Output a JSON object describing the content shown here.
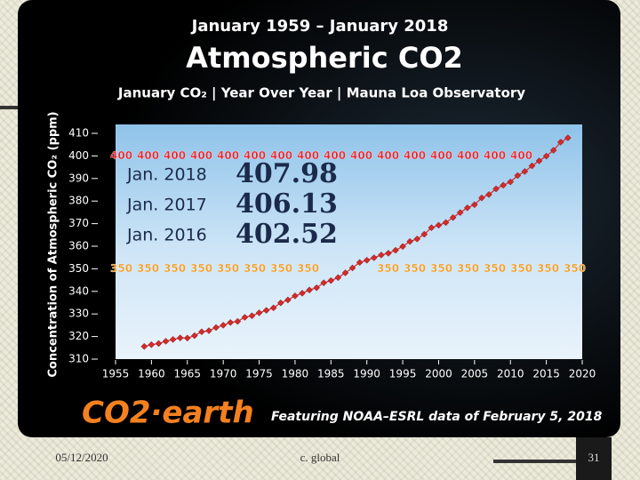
{
  "chart_data": {
    "type": "line",
    "title": "January 1959 – January 2018",
    "headline": "Atmospheric CO2",
    "subtitle": "January CO₂ | Year Over Year | Mauna Loa Observatory",
    "ylabel": "Concentration of Atmospheric CO₂ (ppm)",
    "brand": "CO2·earth",
    "credit": "Featuring NOAA–ESRL data of February 5, 2018",
    "x": [
      1959,
      1960,
      1961,
      1962,
      1963,
      1964,
      1965,
      1966,
      1967,
      1968,
      1969,
      1970,
      1971,
      1972,
      1973,
      1974,
      1975,
      1976,
      1977,
      1978,
      1979,
      1980,
      1981,
      1982,
      1983,
      1984,
      1985,
      1986,
      1987,
      1988,
      1989,
      1990,
      1991,
      1992,
      1993,
      1994,
      1995,
      1996,
      1997,
      1998,
      1999,
      2000,
      2001,
      2002,
      2003,
      2004,
      2005,
      2006,
      2007,
      2008,
      2009,
      2010,
      2011,
      2012,
      2013,
      2014,
      2015,
      2016,
      2017,
      2018
    ],
    "series": [
      {
        "name": "January CO₂",
        "color": "#d42a2a",
        "values": [
          315.6,
          316.4,
          316.9,
          317.9,
          318.7,
          319.4,
          319.3,
          320.4,
          322.1,
          322.6,
          324.0,
          325.0,
          326.2,
          326.7,
          328.5,
          329.2,
          330.5,
          331.6,
          332.7,
          334.9,
          336.2,
          338.0,
          339.2,
          340.6,
          341.6,
          343.8,
          344.8,
          346.1,
          348.2,
          350.4,
          352.8,
          353.8,
          354.9,
          356.1,
          356.9,
          358.2,
          359.9,
          362.1,
          363.2,
          365.3,
          368.2,
          369.3,
          370.5,
          372.7,
          374.9,
          377.0,
          378.4,
          381.4,
          382.9,
          385.4,
          387.0,
          388.5,
          391.3,
          393.1,
          395.6,
          397.8,
          399.9,
          402.5,
          406.1,
          408.0
        ]
      }
    ],
    "xlim": [
      1955,
      2020
    ],
    "xticks": [
      1955,
      1960,
      1965,
      1970,
      1975,
      1980,
      1985,
      1990,
      1995,
      2000,
      2005,
      2010,
      2015,
      2020
    ],
    "ylim": [
      310,
      410
    ],
    "yticks": [
      310,
      320,
      330,
      340,
      350,
      360,
      370,
      380,
      390,
      400,
      410
    ],
    "reference_lines": [
      {
        "value": 400,
        "color": "#e8202a"
      },
      {
        "value": 350,
        "color": "#f29a1f"
      }
    ],
    "annotations": [
      {
        "label": "Jan. 2018",
        "value": 407.98
      },
      {
        "label": "Jan. 2017",
        "value": 406.13
      },
      {
        "label": "Jan. 2016",
        "value": 402.52
      }
    ]
  },
  "footer": {
    "date": "05/12/2020",
    "text": "c. global",
    "page": 31
  }
}
